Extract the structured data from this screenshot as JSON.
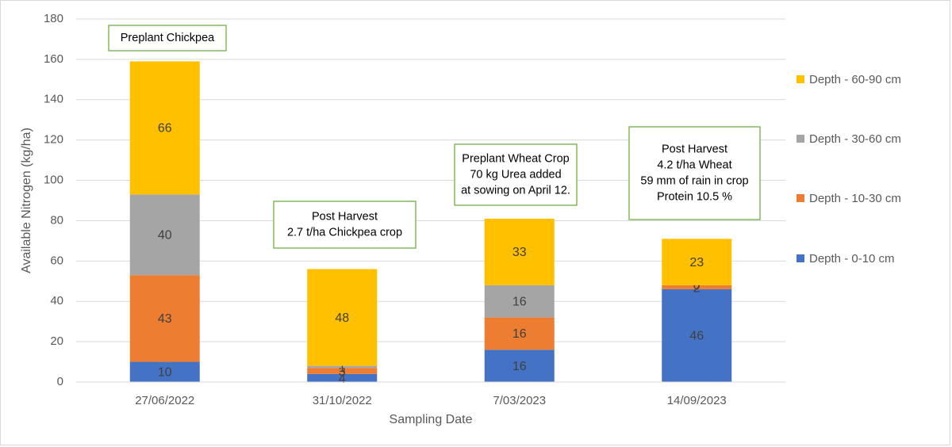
{
  "chart_data": {
    "type": "bar",
    "stacked": true,
    "title": "",
    "xlabel": "Sampling Date",
    "ylabel": "Available Nitrogen (kg/ha)",
    "ylim": [
      0,
      180
    ],
    "yticks": [
      0,
      20,
      40,
      60,
      80,
      100,
      120,
      140,
      160,
      180
    ],
    "grid": true,
    "legend_position": "right",
    "categories": [
      "27/06/2022",
      "31/10/2022",
      "7/03/2023",
      "14/09/2023"
    ],
    "series": [
      {
        "name": "Depth - 0-10 cm",
        "color": "#4472C4",
        "values": [
          10,
          4,
          16,
          46
        ],
        "labels": [
          "10",
          "4",
          "16",
          "46"
        ]
      },
      {
        "name": "Depth - 10-30 cm",
        "color": "#ED7D31",
        "values": [
          43,
          3,
          16,
          2
        ],
        "labels": [
          "43",
          "3",
          "16",
          "2"
        ]
      },
      {
        "name": "Depth - 30-60 cm",
        "color": "#A5A5A5",
        "values": [
          40,
          1,
          16,
          0
        ],
        "labels": [
          "40",
          "1",
          "16",
          "0"
        ]
      },
      {
        "name": "Depth - 60-90 cm",
        "color": "#FFC000",
        "values": [
          66,
          48,
          33,
          23
        ],
        "labels": [
          "66",
          "48",
          "33",
          "23"
        ]
      }
    ],
    "annotations": [
      {
        "category": "27/06/2022",
        "lines": [
          "Preplant Chickpea"
        ]
      },
      {
        "category": "31/10/2022",
        "lines": [
          "Post Harvest",
          "2.7 t/ha Chickpea crop"
        ]
      },
      {
        "category": "7/03/2023",
        "lines": [
          "Preplant Wheat Crop",
          "70 kg Urea added",
          "at sowing on April 12."
        ]
      },
      {
        "category": "14/09/2023",
        "lines": [
          "Post Harvest",
          "4.2 t/ha Wheat",
          "59 mm of rain in crop",
          "Protein 10.5 %"
        ]
      }
    ]
  }
}
